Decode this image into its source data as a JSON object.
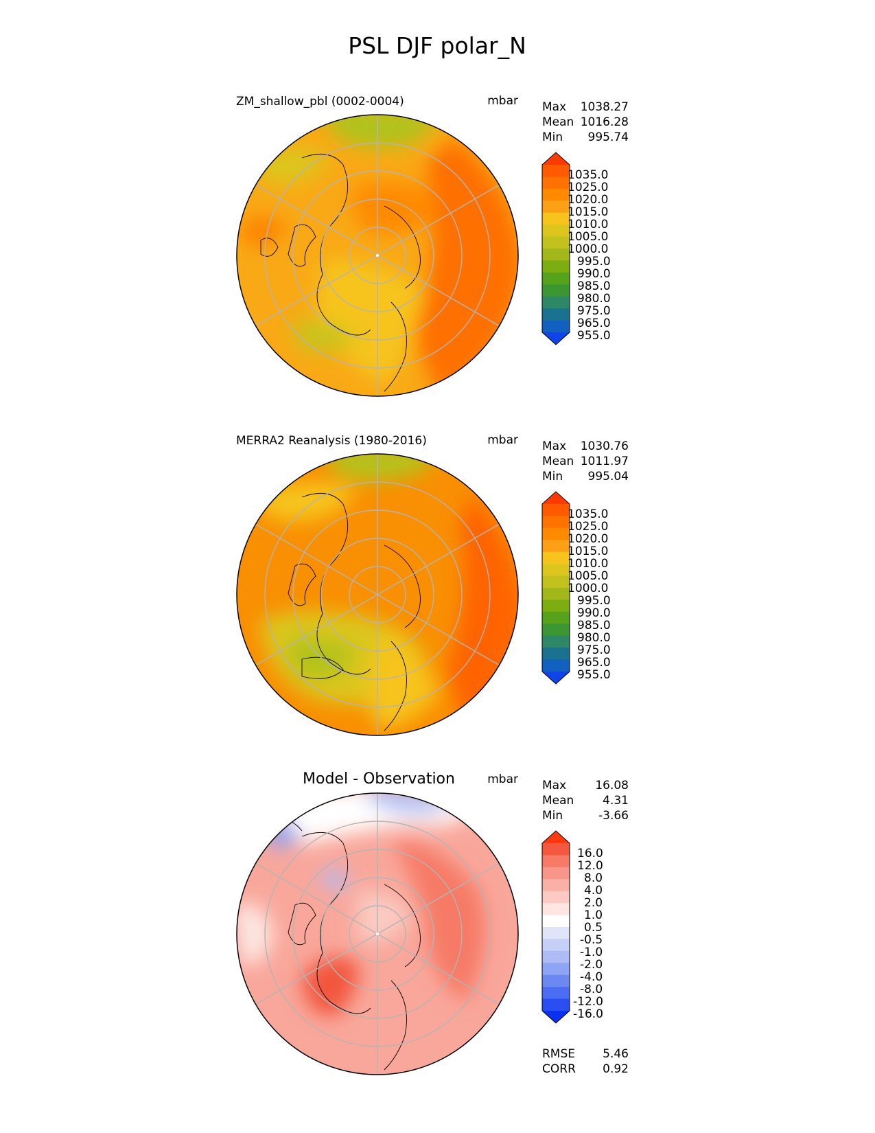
{
  "title": "PSL DJF polar_N",
  "chart_data": [
    {
      "type": "heatmap",
      "projection": "north-polar-stereographic",
      "title": "ZM_shallow_pbl (0002-0004)",
      "units": "mbar",
      "stats": [
        {
          "label": "Max",
          "value": "1038.27"
        },
        {
          "label": "Mean",
          "value": "1016.28"
        },
        {
          "label": "Min",
          "value": "995.74"
        }
      ],
      "colorbar_labels": [
        "1035.0",
        "1025.0",
        "1020.0",
        "1015.0",
        "1010.0",
        "1005.0",
        "1000.0",
        "995.0",
        "990.0",
        "985.0",
        "980.0",
        "975.0",
        "965.0",
        "955.0"
      ],
      "colorbar_colors": [
        "#ff3a00",
        "#ff5a00",
        "#ff7200",
        "#ff8a00",
        "#fca016",
        "#f6c41c",
        "#dcc61e",
        "#c2c21e",
        "#a2b81a",
        "#7cae12",
        "#56a21a",
        "#3c9632",
        "#2e8866",
        "#1a7290",
        "#1260c0",
        "#0f44e6"
      ]
    },
    {
      "type": "heatmap",
      "projection": "north-polar-stereographic",
      "title": "MERRA2 Reanalysis (1980-2016)",
      "units": "mbar",
      "stats": [
        {
          "label": "Max",
          "value": "1030.76"
        },
        {
          "label": "Mean",
          "value": "1011.97"
        },
        {
          "label": "Min",
          "value": "995.04"
        }
      ],
      "colorbar_labels": [
        "1035.0",
        "1025.0",
        "1020.0",
        "1015.0",
        "1010.0",
        "1005.0",
        "1000.0",
        "995.0",
        "990.0",
        "985.0",
        "980.0",
        "975.0",
        "965.0",
        "955.0"
      ],
      "colorbar_colors": [
        "#ff3a00",
        "#ff5a00",
        "#ff7200",
        "#ff8a00",
        "#fca016",
        "#f6c41c",
        "#dcc61e",
        "#c2c21e",
        "#a2b81a",
        "#7cae12",
        "#56a21a",
        "#3c9632",
        "#2e8866",
        "#1a7290",
        "#1260c0",
        "#0f44e6"
      ]
    },
    {
      "type": "heatmap",
      "projection": "north-polar-stereographic",
      "title": "Model - Observation",
      "units": "mbar",
      "stats": [
        {
          "label": "Max",
          "value": "16.08"
        },
        {
          "label": "Mean",
          "value": "4.31"
        },
        {
          "label": "Min",
          "value": "-3.66"
        }
      ],
      "metrics": [
        {
          "label": "RMSE",
          "value": "5.46"
        },
        {
          "label": "CORR",
          "value": "0.92"
        }
      ],
      "colorbar_labels": [
        "16.0",
        "12.0",
        "8.0",
        "4.0",
        "2.0",
        "1.0",
        "0.5",
        "-0.5",
        "-1.0",
        "-2.0",
        "-4.0",
        "-8.0",
        "-12.0",
        "-16.0"
      ],
      "colorbar_colors": [
        "#ff3a10",
        "#f4583e",
        "#f67a66",
        "#f8968a",
        "#f9b0a6",
        "#fbcac2",
        "#fde6e2",
        "#ffffff",
        "#dfe4f8",
        "#c6d0f6",
        "#aebcf6",
        "#8ea4f4",
        "#6e88f2",
        "#4c6cf2",
        "#2a4ef2",
        "#0a30f0"
      ]
    }
  ]
}
